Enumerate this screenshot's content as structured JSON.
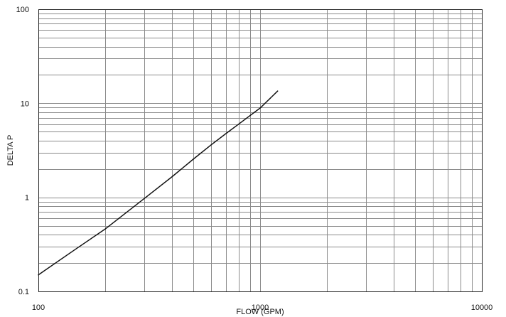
{
  "chart_data": {
    "type": "line",
    "title": "",
    "xlabel": "FLOW (GPM)",
    "ylabel": "DELTA P",
    "x_scale": "log",
    "y_scale": "log",
    "xlim": [
      100,
      10000
    ],
    "ylim": [
      0.1,
      100
    ],
    "grid": true,
    "x_tick_labels": [
      "100",
      "1000",
      "10000"
    ],
    "y_tick_labels": [
      "0.1",
      "1",
      "10",
      "100"
    ],
    "series": [
      {
        "x": [
          100,
          150,
          200,
          300,
          400,
          500,
          600,
          700,
          800,
          1000,
          1200
        ],
        "y": [
          0.15,
          0.29,
          0.46,
          0.97,
          1.65,
          2.55,
          3.6,
          4.75,
          6.0,
          8.9,
          13.5
        ]
      }
    ]
  },
  "colors": {
    "background": "#ffffff",
    "grid": "#8a8a8a",
    "frame": "#222222",
    "series": "#111111",
    "text": "#111111"
  }
}
